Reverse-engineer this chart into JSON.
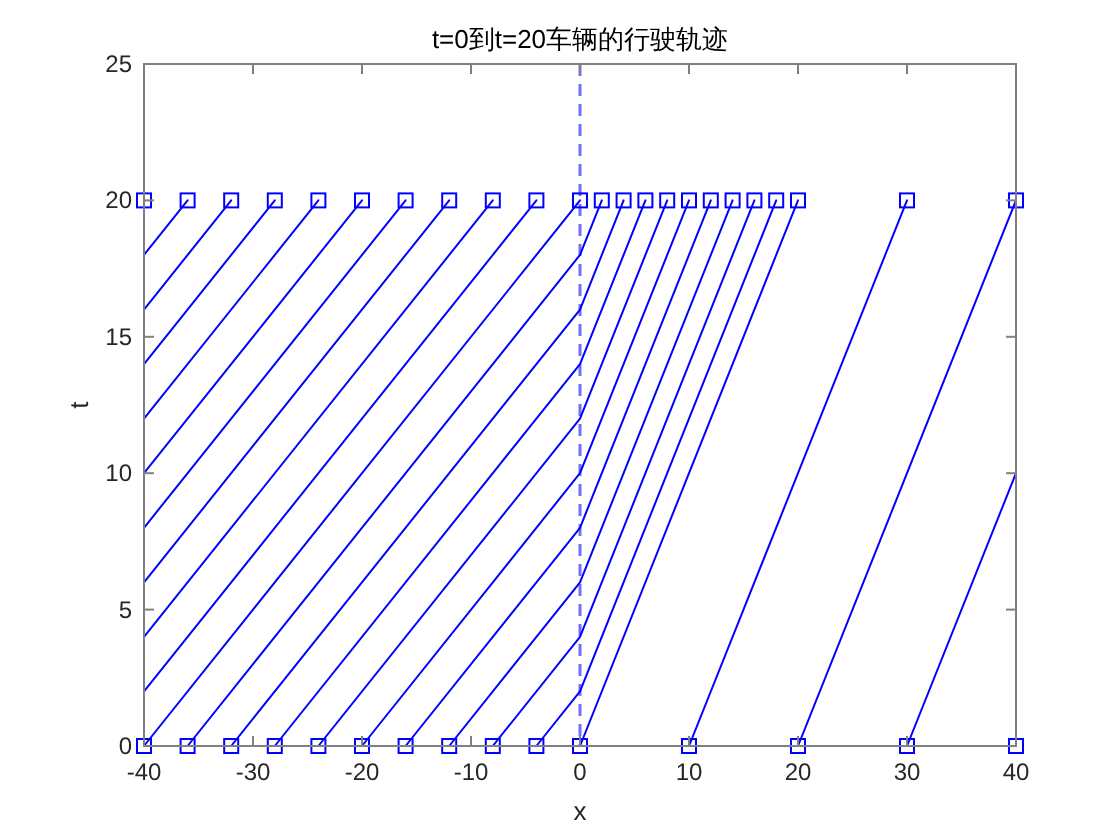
{
  "chart_data": {
    "type": "line",
    "title": "t=0到t=20车辆的行驶轨迹",
    "xlabel": "x",
    "ylabel": "t",
    "xlim": [
      -40,
      40
    ],
    "ylim": [
      0,
      25
    ],
    "xticks": [
      -40,
      -30,
      -20,
      -10,
      0,
      10,
      20,
      30,
      40
    ],
    "yticks": [
      0,
      5,
      10,
      15,
      20,
      25
    ],
    "marker": "none",
    "line_style": "solid",
    "ref_lines": [
      {
        "axis": "x",
        "value": 0,
        "color": "#7070ff",
        "line_style": "dashed"
      }
    ],
    "series": [
      {
        "color": "#0000ff",
        "x": [
          -40,
          0
        ],
        "values": [
          0,
          20
        ]
      },
      {
        "color": "#0000ff",
        "x": [
          -36,
          0,
          2
        ],
        "values": [
          0,
          18,
          20
        ]
      },
      {
        "color": "#0000ff",
        "x": [
          -32,
          0,
          4
        ],
        "values": [
          0,
          16,
          20
        ]
      },
      {
        "color": "#0000ff",
        "x": [
          -28,
          0,
          6
        ],
        "values": [
          0,
          14,
          20
        ]
      },
      {
        "color": "#0000ff",
        "x": [
          -24,
          0,
          8
        ],
        "values": [
          0,
          12,
          20
        ]
      },
      {
        "color": "#0000ff",
        "x": [
          -20,
          0,
          10
        ],
        "values": [
          0,
          10,
          20
        ]
      },
      {
        "color": "#0000ff",
        "x": [
          -16,
          0,
          12
        ],
        "values": [
          0,
          8,
          20
        ]
      },
      {
        "color": "#0000ff",
        "x": [
          -12,
          0,
          14
        ],
        "values": [
          0,
          6,
          20
        ]
      },
      {
        "color": "#0000ff",
        "x": [
          -8,
          0,
          16
        ],
        "values": [
          0,
          4,
          20
        ]
      },
      {
        "color": "#0000ff",
        "x": [
          -4,
          0,
          18
        ],
        "values": [
          0,
          2,
          20
        ]
      },
      {
        "color": "#0000ff",
        "x": [
          0,
          20
        ],
        "values": [
          0,
          20
        ]
      },
      {
        "color": "#0000ff",
        "x": [
          10,
          30
        ],
        "values": [
          0,
          20
        ]
      },
      {
        "color": "#0000ff",
        "x": [
          20,
          40
        ],
        "values": [
          0,
          20
        ]
      },
      {
        "color": "#0000ff",
        "x": [
          30,
          40
        ],
        "values": [
          0,
          10
        ]
      },
      {
        "color": "#0000ff",
        "x": [
          -40,
          -4
        ],
        "values": [
          2,
          20
        ]
      },
      {
        "color": "#0000ff",
        "x": [
          -40,
          -8
        ],
        "values": [
          4,
          20
        ]
      },
      {
        "color": "#0000ff",
        "x": [
          -40,
          -12
        ],
        "values": [
          6,
          20
        ]
      },
      {
        "color": "#0000ff",
        "x": [
          -40,
          -16
        ],
        "values": [
          8,
          20
        ]
      },
      {
        "color": "#0000ff",
        "x": [
          -40,
          -20
        ],
        "values": [
          10,
          20
        ]
      },
      {
        "color": "#0000ff",
        "x": [
          -40,
          -24
        ],
        "values": [
          12,
          20
        ]
      },
      {
        "color": "#0000ff",
        "x": [
          -40,
          -28
        ],
        "values": [
          14,
          20
        ]
      },
      {
        "color": "#0000ff",
        "x": [
          -40,
          -32
        ],
        "values": [
          16,
          20
        ]
      },
      {
        "color": "#0000ff",
        "x": [
          -40,
          -36
        ],
        "values": [
          18,
          20
        ]
      },
      {
        "type": "scatter",
        "marker": "square",
        "color": "#0000ff",
        "x": [
          -40,
          -36,
          -32,
          -28,
          -24,
          -20,
          -16,
          -12,
          -8,
          -4,
          0,
          10,
          20,
          30,
          40
        ],
        "values": [
          0,
          0,
          0,
          0,
          0,
          0,
          0,
          0,
          0,
          0,
          0,
          0,
          0,
          0,
          0
        ]
      },
      {
        "type": "scatter",
        "marker": "square",
        "color": "#0000ff",
        "x": [
          -40,
          -36,
          -32,
          -28,
          -24,
          -20,
          -16,
          -12,
          -8,
          -4,
          0,
          2,
          4,
          6,
          8,
          10,
          12,
          14,
          16,
          18,
          20,
          30,
          40
        ],
        "values": [
          20,
          20,
          20,
          20,
          20,
          20,
          20,
          20,
          20,
          20,
          20,
          20,
          20,
          20,
          20,
          20,
          20,
          20,
          20,
          20,
          20,
          20,
          20
        ]
      }
    ]
  }
}
